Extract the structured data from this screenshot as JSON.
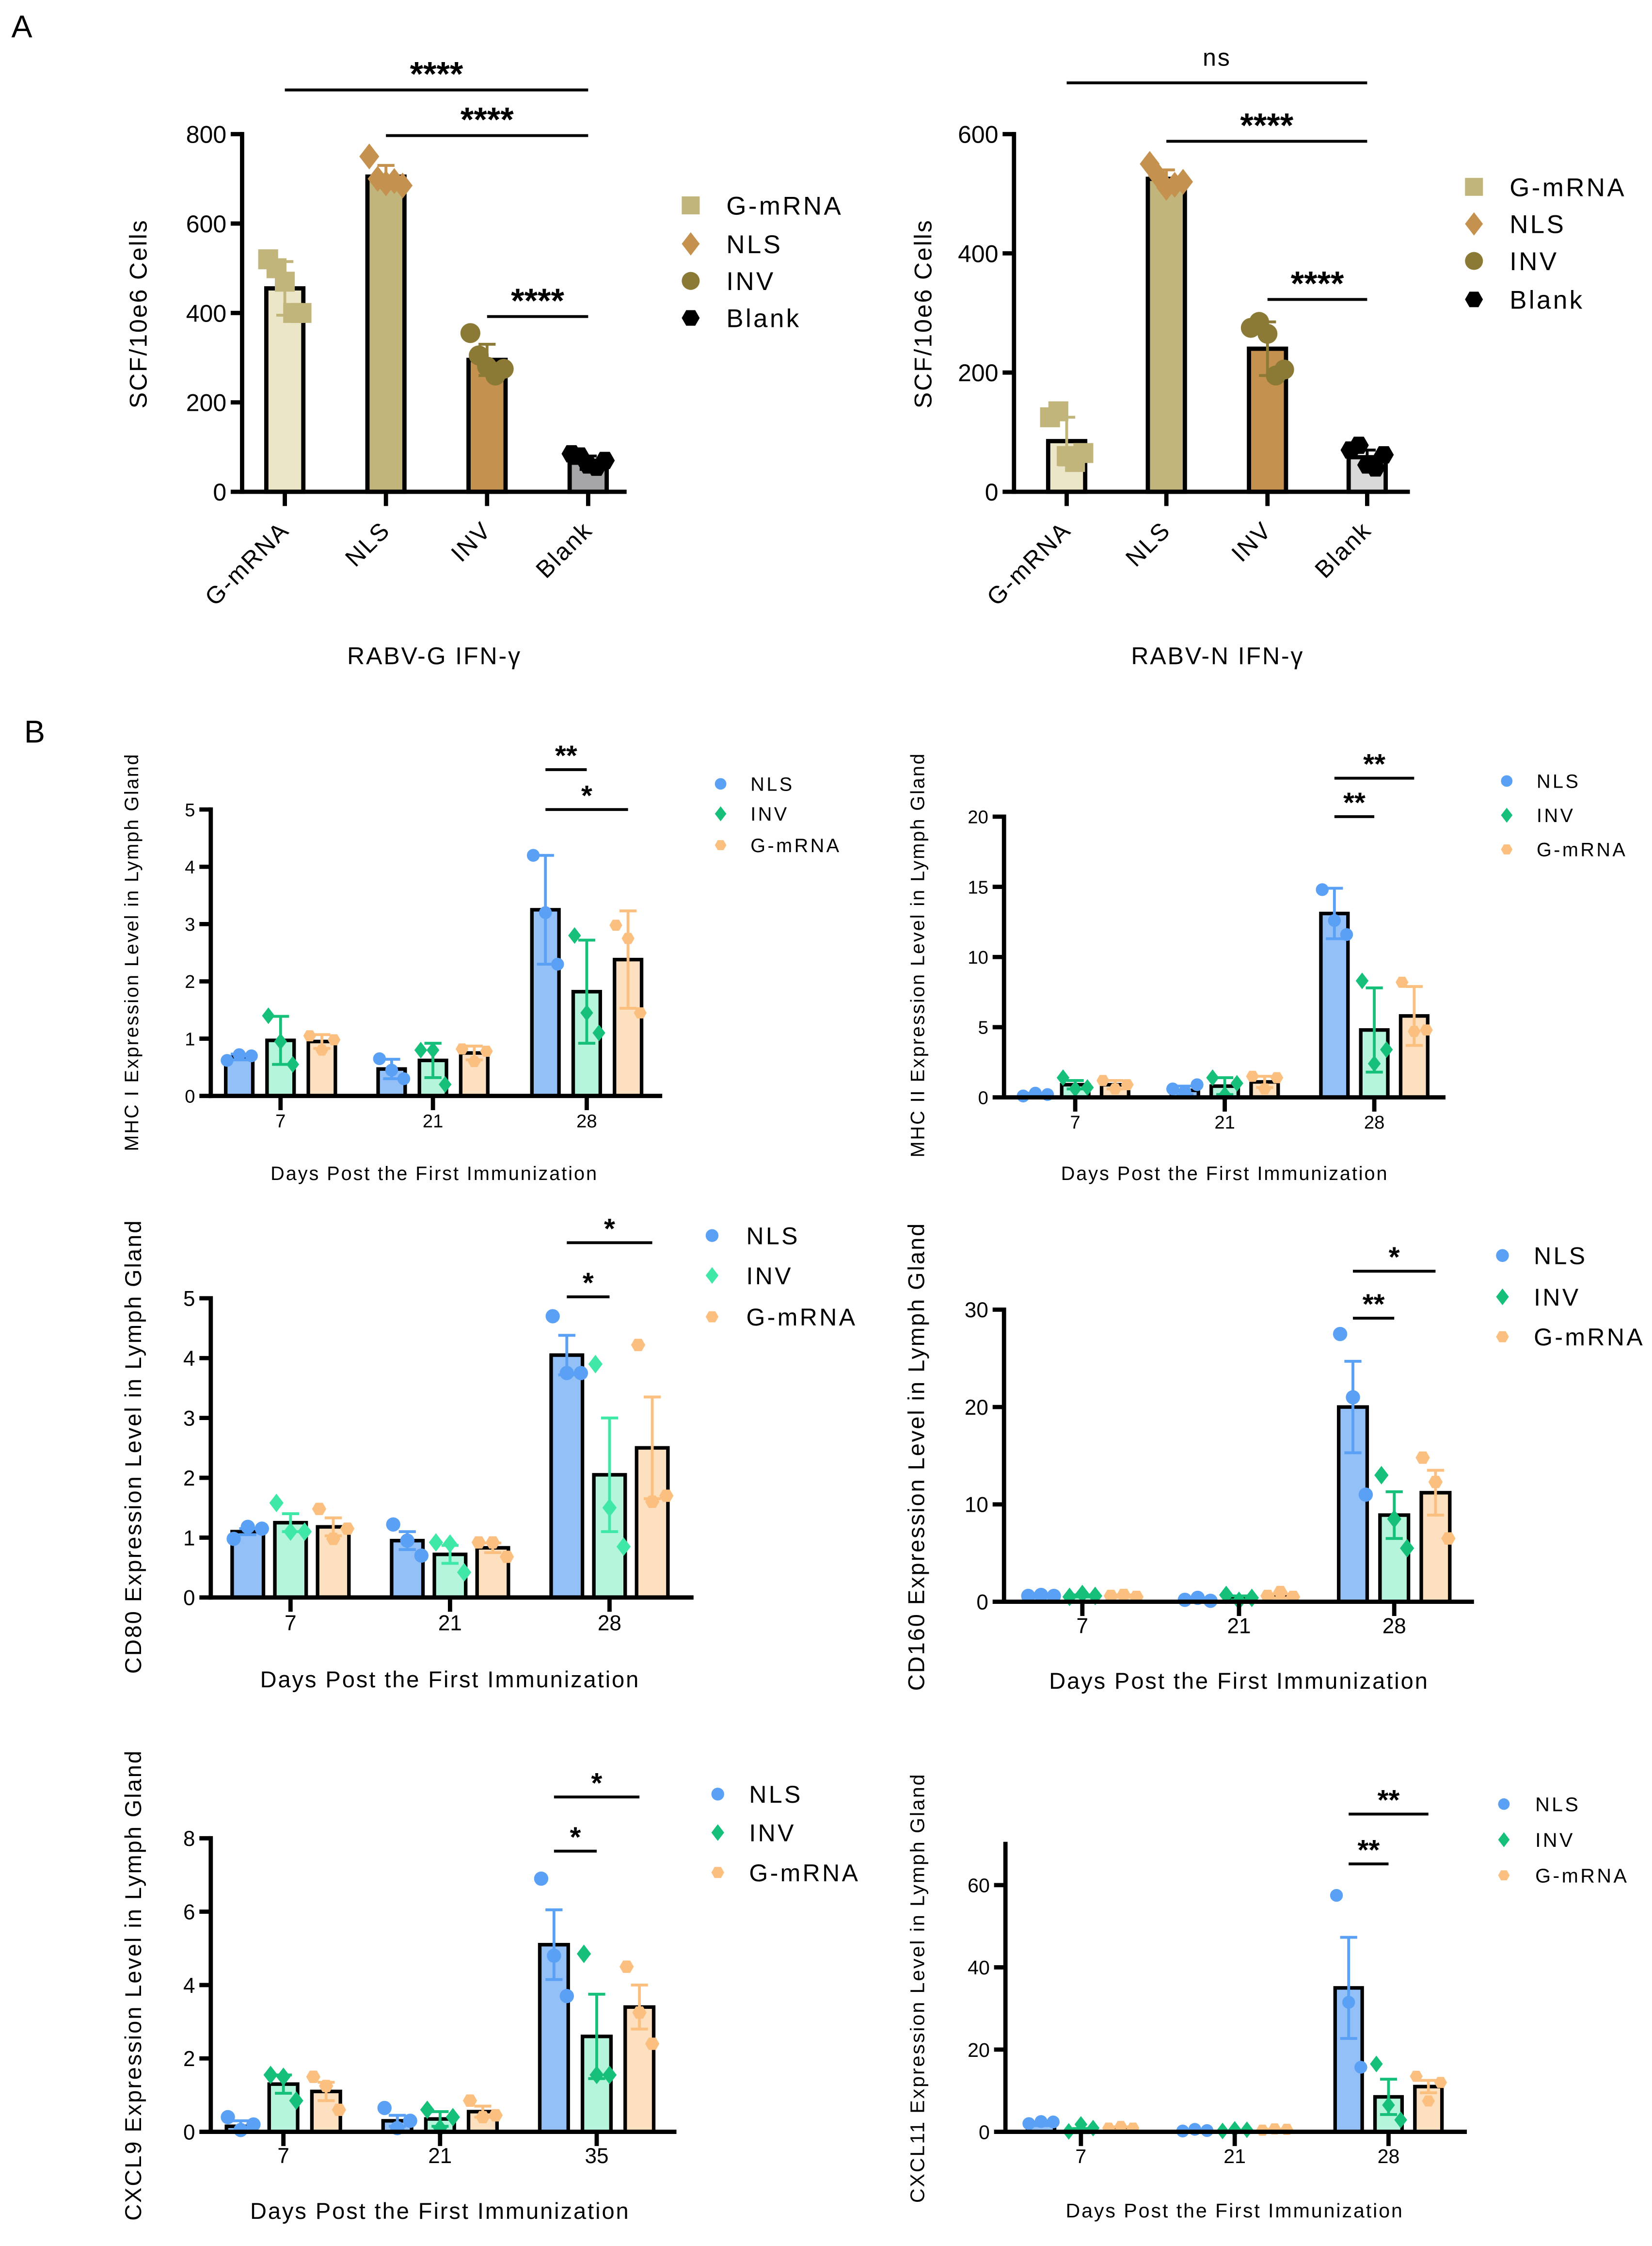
{
  "panel_labels": {
    "a": "A",
    "b": "B"
  },
  "chart_data": [
    {
      "id": "rabv-g-ifn",
      "type": "bar",
      "panel": "A",
      "xlabel": "RABV-G IFN-γ",
      "ylabel": "SCF/10e6 Cells",
      "ylim": [
        0,
        800
      ],
      "yticks": [
        0,
        200,
        400,
        600,
        800
      ],
      "categories": [
        "G-mRNA",
        "NLS",
        "INV",
        "Blank"
      ],
      "values": [
        455,
        705,
        295,
        65
      ],
      "errors": [
        60,
        25,
        35,
        15
      ],
      "points": [
        [
          520,
          500,
          470,
          400,
          400
        ],
        [
          750,
          700,
          690,
          695,
          685
        ],
        [
          355,
          305,
          280,
          260,
          275
        ],
        [
          85,
          80,
          60,
          55,
          70
        ]
      ],
      "bar_colors": [
        "#ece6c8",
        "#c2b57c",
        "#c4924e",
        "#a6a6a9"
      ],
      "marker_colors": [
        "#c2b57c",
        "#c4924e",
        "#8b7a35",
        "#000000"
      ],
      "markers": [
        "square",
        "diamond",
        "circle",
        "hexagon"
      ],
      "legend": {
        "placement": "right",
        "entries": [
          "G-mRNA",
          "NLS",
          "INV",
          "Blank"
        ]
      },
      "significance": [
        {
          "from": "G-mRNA",
          "to": "Blank",
          "label": "****"
        },
        {
          "from": "NLS",
          "to": "Blank",
          "label": "****"
        },
        {
          "from": "INV",
          "to": "Blank",
          "label": "****"
        }
      ]
    },
    {
      "id": "rabv-n-ifn",
      "type": "bar",
      "panel": "A",
      "xlabel": "RABV-N IFN-γ",
      "ylabel": "SCF/10e6 Cells",
      "ylim": [
        0,
        600
      ],
      "yticks": [
        0,
        200,
        400,
        600
      ],
      "categories": [
        "G-mRNA",
        "NLS",
        "INV",
        "Blank"
      ],
      "values": [
        85,
        525,
        240,
        58
      ],
      "errors": [
        40,
        15,
        45,
        12
      ],
      "points": [
        [
          125,
          135,
          60,
          50,
          65
        ],
        [
          550,
          530,
          510,
          515,
          520
        ],
        [
          275,
          285,
          265,
          195,
          205
        ],
        [
          70,
          78,
          45,
          40,
          62
        ]
      ],
      "bar_colors": [
        "#ece6c8",
        "#c2b57c",
        "#c4924e",
        "#d9d9d9"
      ],
      "marker_colors": [
        "#c2b57c",
        "#c4924e",
        "#8b7a35",
        "#000000"
      ],
      "markers": [
        "square",
        "diamond",
        "circle",
        "hexagon"
      ],
      "legend": {
        "placement": "right",
        "entries": [
          "G-mRNA",
          "NLS",
          "INV",
          "Blank"
        ]
      },
      "significance": [
        {
          "from": "G-mRNA",
          "to": "Blank",
          "label": "ns"
        },
        {
          "from": "NLS",
          "to": "Blank",
          "label": "****"
        },
        {
          "from": "INV",
          "to": "Blank",
          "label": "****"
        }
      ]
    },
    {
      "id": "mhc-i",
      "type": "bar",
      "panel": "B",
      "xlabel": "Days Post the First Immunization",
      "ylabel": "MHC I Expression Level in Lymph Gland",
      "ylim": [
        0,
        5
      ],
      "yticks": [
        0,
        1,
        2,
        3,
        4,
        5
      ],
      "categories": [
        "7",
        "21",
        "28"
      ],
      "series": [
        {
          "name": "NLS",
          "values": [
            0.68,
            0.47,
            3.25
          ],
          "errors": [
            0.05,
            0.17,
            0.95
          ],
          "points": [
            [
              0.62,
              0.72,
              0.7
            ],
            [
              0.65,
              0.45,
              0.3
            ],
            [
              4.2,
              3.2,
              2.3
            ]
          ],
          "bar_color": "#93c0f7",
          "marker_color": "#5aa0f5",
          "marker": "circle"
        },
        {
          "name": "INV",
          "values": [
            0.97,
            0.62,
            1.82
          ],
          "errors": [
            0.42,
            0.3,
            0.9
          ],
          "points": [
            [
              1.4,
              0.95,
              0.55
            ],
            [
              0.8,
              0.8,
              0.2
            ],
            [
              2.8,
              1.45,
              1.1
            ]
          ],
          "bar_color": "#b4f5dc",
          "marker_color": "#17c07a",
          "marker": "diamond"
        },
        {
          "name": "G-mRNA",
          "values": [
            0.95,
            0.75,
            2.38
          ],
          "errors": [
            0.12,
            0.12,
            0.85
          ],
          "points": [
            [
              1.05,
              0.8,
              0.98
            ],
            [
              0.82,
              0.6,
              0.78
            ],
            [
              2.98,
              2.75,
              1.45
            ]
          ],
          "bar_color": "#fde0c0",
          "marker_color": "#fbbf80",
          "marker": "hexagon"
        }
      ],
      "legend": {
        "placement": "top-right",
        "entries": [
          "NLS",
          "INV",
          "G-mRNA"
        ]
      },
      "significance": [
        {
          "group": "28",
          "from": "NLS",
          "to": "INV",
          "label": "**"
        },
        {
          "group": "28",
          "from": "NLS",
          "to": "G-mRNA",
          "label": "*"
        }
      ]
    },
    {
      "id": "mhc-ii",
      "type": "bar",
      "panel": "B",
      "xlabel": "Days Post the First Immunization",
      "ylabel": "MHC II Expression Level in Lymph Gland",
      "ylim": [
        0,
        20
      ],
      "yticks": [
        0,
        5,
        10,
        15,
        20
      ],
      "categories": [
        "7",
        "21",
        "28"
      ],
      "series": [
        {
          "name": "NLS",
          "values": [
            0.2,
            0.5,
            13.1
          ],
          "errors": [
            0.1,
            0.3,
            1.8
          ],
          "points": [
            [
              0.1,
              0.3,
              0.2
            ],
            [
              0.6,
              0.4,
              0.9
            ],
            [
              14.8,
              12.6,
              11.6
            ]
          ],
          "bar_color": "#93c0f7",
          "marker_color": "#5aa0f5",
          "marker": "circle"
        },
        {
          "name": "INV",
          "values": [
            0.9,
            0.8,
            4.8
          ],
          "errors": [
            0.3,
            0.6,
            3.0
          ],
          "points": [
            [
              1.4,
              0.6,
              0.7
            ],
            [
              1.4,
              0.2,
              1.0
            ],
            [
              8.3,
              2.4,
              3.4
            ]
          ],
          "bar_color": "#b4f5dc",
          "marker_color": "#17c07a",
          "marker": "diamond"
        },
        {
          "name": "G-mRNA",
          "values": [
            0.9,
            1.1,
            5.8
          ],
          "errors": [
            0.3,
            0.4,
            2.1
          ],
          "points": [
            [
              1.2,
              0.6,
              0.9
            ],
            [
              1.5,
              0.6,
              1.4
            ],
            [
              8.2,
              4.7,
              4.8
            ]
          ],
          "bar_color": "#fde0c0",
          "marker_color": "#fbbf80",
          "marker": "hexagon"
        }
      ],
      "legend": {
        "placement": "top-right",
        "entries": [
          "NLS",
          "INV",
          "G-mRNA"
        ]
      },
      "significance": [
        {
          "group": "28",
          "from": "NLS",
          "to": "G-mRNA",
          "label": "**"
        },
        {
          "group": "28",
          "from": "NLS",
          "to": "INV",
          "label": "**"
        }
      ]
    },
    {
      "id": "cd80",
      "type": "bar",
      "panel": "B",
      "xlabel": "Days Post the First Immunization",
      "ylabel": "CD80 Expression Level in Lymph Gland",
      "ylim": [
        0,
        5
      ],
      "yticks": [
        0,
        1,
        2,
        3,
        4,
        5
      ],
      "categories": [
        "7",
        "21",
        "28"
      ],
      "series": [
        {
          "name": "NLS",
          "values": [
            1.1,
            0.95,
            4.05
          ],
          "errors": [
            0.05,
            0.15,
            0.33
          ],
          "points": [
            [
              0.98,
              1.18,
              1.15
            ],
            [
              1.22,
              0.95,
              0.7
            ],
            [
              4.7,
              3.75,
              3.75
            ]
          ],
          "bar_color": "#93c0f7",
          "marker_color": "#5aa0f5",
          "marker": "circle"
        },
        {
          "name": "INV",
          "values": [
            1.25,
            0.72,
            2.05
          ],
          "errors": [
            0.15,
            0.15,
            0.95
          ],
          "points": [
            [
              1.58,
              1.1,
              1.1
            ],
            [
              0.92,
              0.9,
              0.42
            ],
            [
              3.9,
              1.5,
              0.85
            ]
          ],
          "bar_color": "#b4f5dc",
          "marker_color": "#40e8a8",
          "marker": "diamond"
        },
        {
          "name": "G-mRNA",
          "values": [
            1.18,
            0.83,
            2.5
          ],
          "errors": [
            0.15,
            0.08,
            0.85
          ],
          "points": [
            [
              1.48,
              0.98,
              1.15
            ],
            [
              0.92,
              0.92,
              0.68
            ],
            [
              4.22,
              1.6,
              1.7
            ]
          ],
          "bar_color": "#fde0c0",
          "marker_color": "#fbbf80",
          "marker": "hexagon"
        }
      ],
      "legend": {
        "placement": "top-right",
        "entries": [
          "NLS",
          "INV",
          "G-mRNA"
        ]
      },
      "significance": [
        {
          "group": "28",
          "from": "NLS",
          "to": "INV",
          "label": "*"
        },
        {
          "group": "28",
          "from": "NLS",
          "to": "G-mRNA",
          "label": "*"
        }
      ]
    },
    {
      "id": "cd160",
      "type": "bar",
      "panel": "B",
      "xlabel": "Days Post the First Immunization",
      "ylabel": "CD160 Expression Level in Lymph Gland",
      "ylim": [
        0,
        30
      ],
      "yticks": [
        0,
        10,
        20,
        30
      ],
      "categories": [
        "7",
        "21",
        "28"
      ],
      "series": [
        {
          "name": "NLS",
          "values": [
            0.6,
            0.2,
            20
          ],
          "errors": [
            0.1,
            0.1,
            4.7
          ],
          "points": [
            [
              0.6,
              0.7,
              0.6
            ],
            [
              0.2,
              0.4,
              0.1
            ],
            [
              27.5,
              21,
              11
            ]
          ],
          "bar_color": "#93c0f7",
          "marker_color": "#5aa0f5",
          "marker": "circle"
        },
        {
          "name": "INV",
          "values": [
            0.6,
            0.4,
            8.9
          ],
          "errors": [
            0.1,
            0.2,
            2.4
          ],
          "points": [
            [
              0.5,
              0.8,
              0.6
            ],
            [
              0.7,
              0.1,
              0.4
            ],
            [
              13,
              8.5,
              5.5
            ]
          ],
          "bar_color": "#b4f5dc",
          "marker_color": "#17c07a",
          "marker": "diamond"
        },
        {
          "name": "G-mRNA",
          "values": [
            0.6,
            0.6,
            11.2
          ],
          "errors": [
            0.1,
            0.2,
            2.3
          ],
          "points": [
            [
              0.6,
              0.7,
              0.5
            ],
            [
              0.6,
              1.0,
              0.5
            ],
            [
              14.8,
              12.3,
              6.5
            ]
          ],
          "bar_color": "#fde0c0",
          "marker_color": "#fbbf80",
          "marker": "hexagon"
        }
      ],
      "legend": {
        "placement": "top-right",
        "entries": [
          "NLS",
          "INV",
          "G-mRNA"
        ]
      },
      "significance": [
        {
          "group": "28",
          "from": "NLS",
          "to": "G-mRNA",
          "label": "*"
        },
        {
          "group": "28",
          "from": "NLS",
          "to": "INV",
          "label": "**"
        }
      ]
    },
    {
      "id": "cxcl9",
      "type": "bar",
      "panel": "B",
      "xlabel": "Days Post the First Immunization",
      "ylabel": "CXCL9 Expression Level in Lymph Gland",
      "ylim": [
        0,
        8
      ],
      "yticks": [
        0,
        2,
        4,
        6,
        8
      ],
      "categories": [
        "7",
        "21",
        "35"
      ],
      "series": [
        {
          "name": "NLS",
          "values": [
            0.15,
            0.3,
            5.1
          ],
          "errors": [
            0.15,
            0.15,
            0.95
          ],
          "points": [
            [
              0.4,
              0.05,
              0.2
            ],
            [
              0.65,
              0.1,
              0.3
            ],
            [
              6.9,
              4.8,
              3.7
            ]
          ],
          "bar_color": "#93c0f7",
          "marker_color": "#5aa0f5",
          "marker": "circle"
        },
        {
          "name": "INV",
          "values": [
            1.3,
            0.35,
            2.6
          ],
          "errors": [
            0.25,
            0.2,
            1.15
          ],
          "points": [
            [
              1.55,
              1.5,
              0.85
            ],
            [
              0.6,
              0.1,
              0.4
            ],
            [
              4.85,
              1.55,
              1.55
            ]
          ],
          "bar_color": "#b4f5dc",
          "marker_color": "#17c07a",
          "marker": "diamond"
        },
        {
          "name": "G-mRNA",
          "values": [
            1.1,
            0.55,
            3.4
          ],
          "errors": [
            0.25,
            0.15,
            0.6
          ],
          "points": [
            [
              1.5,
              1.25,
              0.6
            ],
            [
              0.85,
              0.4,
              0.45
            ],
            [
              4.5,
              3.25,
              2.4
            ]
          ],
          "bar_color": "#fde0c0",
          "marker_color": "#fbbf80",
          "marker": "hexagon"
        }
      ],
      "legend": {
        "placement": "top-right",
        "entries": [
          "NLS",
          "INV",
          "G-mRNA"
        ]
      },
      "significance": [
        {
          "group": "35",
          "from": "NLS",
          "to": "INV",
          "label": "*"
        },
        {
          "group": "35",
          "from": "NLS",
          "to": "G-mRNA",
          "label": "*"
        }
      ]
    },
    {
      "id": "cxcl11",
      "type": "bar",
      "panel": "B",
      "xlabel": "Days Post the First Immunization",
      "ylabel": "CXCL11 Expression Level in Lymph Gland",
      "ylim": [
        0,
        70
      ],
      "yticks": [
        0,
        20,
        40,
        60
      ],
      "categories": [
        "7",
        "21",
        "28"
      ],
      "series": [
        {
          "name": "NLS",
          "values": [
            1.8,
            0.3,
            35
          ],
          "errors": [
            0.3,
            0.1,
            12.3
          ],
          "points": [
            [
              2.0,
              2.5,
              2.4
            ],
            [
              0.2,
              0.6,
              0.3
            ],
            [
              57.5,
              31.5,
              15.7
            ]
          ],
          "bar_color": "#93c0f7",
          "marker_color": "#5aa0f5",
          "marker": "circle"
        },
        {
          "name": "INV",
          "values": [
            0.3,
            0.1,
            8.5
          ],
          "errors": [
            0.5,
            0.1,
            4.3
          ],
          "points": [
            [
              0.1,
              1.8,
              0.9
            ],
            [
              0.2,
              0.6,
              0.5
            ],
            [
              16.5,
              6.5,
              2.9
            ]
          ],
          "bar_color": "#b4f5dc",
          "marker_color": "#17c07a",
          "marker": "diamond"
        },
        {
          "name": "G-mRNA",
          "values": [
            0.8,
            0.4,
            11
          ],
          "errors": [
            0.4,
            0.2,
            1.5
          ],
          "points": [
            [
              0.9,
              1.3,
              0.9
            ],
            [
              0.4,
              0.7,
              0.6
            ],
            [
              13.5,
              7.5,
              12
            ]
          ],
          "bar_color": "#fde0c0",
          "marker_color": "#fbbf80",
          "marker": "hexagon"
        }
      ],
      "legend": {
        "placement": "top-right",
        "entries": [
          "NLS",
          "INV",
          "G-mRNA"
        ]
      },
      "significance": [
        {
          "group": "28",
          "from": "NLS",
          "to": "G-mRNA",
          "label": "**"
        },
        {
          "group": "28",
          "from": "NLS",
          "to": "INV",
          "label": "**"
        }
      ]
    }
  ]
}
